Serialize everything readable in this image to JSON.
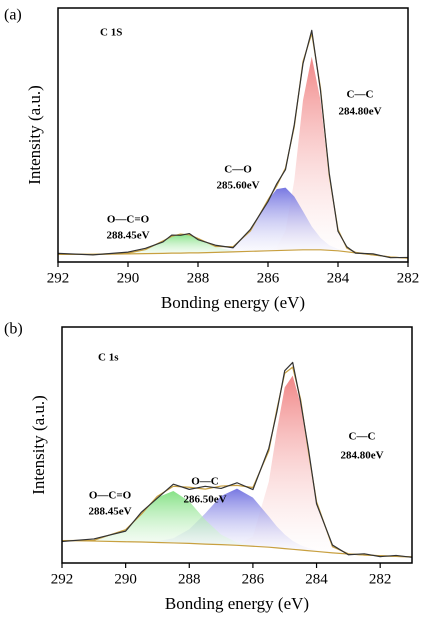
{
  "chart_data": [
    {
      "type": "xps",
      "label": "(a)",
      "x_label": "Bonding energy (eV)",
      "y_label": "Intensity (a.u.)",
      "annotations": [
        "C 1S",
        "C—C",
        "284.80eV",
        "C—O",
        "285.60eV",
        "O—C=O",
        "288.45eV"
      ],
      "xlim": [
        292,
        282
      ],
      "xticks": [
        292,
        290,
        288,
        286,
        284,
        282
      ],
      "ylim": [
        0,
        100
      ],
      "x": [
        292,
        291,
        290,
        289.5,
        289,
        288.75,
        288.5,
        288.25,
        288,
        287.5,
        287,
        286.5,
        286,
        285.75,
        285.5,
        285.25,
        285,
        284.75,
        284.5,
        284.25,
        284,
        283.75,
        283.5,
        283,
        282.5,
        282
      ],
      "baseline": {
        "color": "#c8a040",
        "values": [
          3,
          3,
          3.2,
          3.3,
          3.4,
          3.5,
          3.5,
          3.6,
          3.6,
          3.8,
          4,
          4.2,
          4.4,
          4.5,
          4.6,
          4.7,
          4.8,
          4.8,
          4.8,
          4.6,
          4.4,
          4,
          3.6,
          2.8,
          2,
          1.5
        ]
      },
      "series": [
        {
          "color": "#f08080",
          "fill": true,
          "values": [
            0,
            0,
            0,
            0,
            0,
            0,
            0,
            0,
            0,
            0,
            0,
            0,
            0.1,
            1.3,
            7.7,
            27.4,
            58.9,
            76,
            58.9,
            27.4,
            7.7,
            1.3,
            0.1,
            0,
            0,
            0
          ]
        },
        {
          "color": "#7070e0",
          "fill": true,
          "values": [
            0,
            0,
            0,
            0,
            0,
            0,
            0,
            0,
            0,
            0.2,
            1.6,
            8.1,
            20,
            24.2,
            24.7,
            21.1,
            15.2,
            9.2,
            4.7,
            2.0,
            0.7,
            0.2,
            0.1,
            0,
            0,
            0
          ]
        },
        {
          "color": "#80e080",
          "fill": true,
          "values": [
            0,
            0,
            0.3,
            1.6,
            4.9,
            6.6,
            7.5,
            7.1,
            5.7,
            2.1,
            0.4,
            0,
            0,
            0,
            0,
            0,
            0,
            0,
            0,
            0,
            0,
            0,
            0,
            0,
            0,
            0
          ]
        },
        {
          "color": "#c8a040",
          "values": [
            3,
            3,
            3.5,
            4.9,
            8.3,
            10.1,
            11.0,
            10.7,
            9.3,
            6.1,
            6.0,
            12.3,
            24.5,
            30.0,
            37.0,
            53.2,
            78.9,
            90.0,
            68.4,
            34.0,
            12.8,
            5.5,
            3.8,
            2.8,
            2,
            1.5
          ]
        },
        {
          "color": "#333333",
          "values": [
            3.4,
            2.8,
            3.9,
            5.4,
            7.9,
            10.6,
            10.5,
            11.2,
            8.8,
            6.6,
            5.6,
            12.9,
            23.8,
            30.8,
            36.4,
            54.0,
            78.1,
            91.2,
            67.5,
            34.9,
            12.1,
            6.0,
            3.5,
            3.2,
            1.7,
            1.8
          ]
        }
      ]
    },
    {
      "type": "xps",
      "label": "(b)",
      "x_label": "Bonding energy (eV)",
      "y_label": "Intensity (a.u.)",
      "annotations": [
        "C 1s",
        "C—C",
        "284.80eV",
        "O—C",
        "286.50eV",
        "O—C=O",
        "288.45eV"
      ],
      "xlim": [
        292,
        281
      ],
      "xticks": [
        292,
        290,
        288,
        286,
        284,
        282
      ],
      "ylim": [
        0,
        100
      ],
      "x": [
        292,
        291,
        290,
        289.5,
        289,
        288.5,
        288,
        287.5,
        287,
        286.5,
        286,
        285.5,
        285.25,
        285,
        284.75,
        284.5,
        284.25,
        284,
        283.5,
        283,
        282.5,
        282,
        281.5,
        281
      ],
      "baseline": {
        "color": "#c8a040",
        "values": [
          9.5,
          9.3,
          9,
          8.9,
          8.7,
          8.5,
          8.3,
          8,
          7.8,
          7.5,
          7.1,
          6.7,
          6.4,
          6.1,
          5.8,
          5.5,
          5.2,
          4.9,
          4.3,
          3.8,
          3.4,
          3.1,
          2.8,
          2.6
        ]
      },
      "series": [
        {
          "color": "#f08080",
          "fill": true,
          "values": [
            0,
            0,
            0,
            0,
            0,
            0,
            0,
            0,
            0,
            0.2,
            4.1,
            27.8,
            49.4,
            68.3,
            73.6,
            61.8,
            40.4,
            20.6,
            2.5,
            0.1,
            0,
            0,
            0,
            0
          ]
        },
        {
          "color": "#7070e0",
          "fill": true,
          "values": [
            0,
            0,
            0,
            0.1,
            0.5,
            2.0,
            6.0,
            13.0,
            20.6,
            24,
            20.6,
            13.0,
            9.1,
            6.0,
            3.6,
            2.0,
            1.1,
            0.5,
            0.1,
            0,
            0,
            0,
            0,
            0
          ]
        },
        {
          "color": "#80e080",
          "fill": true,
          "values": [
            0,
            0.3,
            5.1,
            11.8,
            19.1,
            22,
            17.8,
            10.3,
            4.2,
            1.2,
            0.2,
            0,
            0,
            0,
            0,
            0,
            0,
            0,
            0,
            0,
            0,
            0,
            0,
            0
          ]
        },
        {
          "color": "#c8a040",
          "values": [
            9.5,
            9.6,
            14.1,
            20.8,
            28.3,
            32.5,
            32.1,
            31.3,
            32.6,
            32.9,
            32.0,
            47.5,
            64.9,
            80.4,
            83.0,
            69.3,
            46.7,
            26.0,
            6.9,
            3.9,
            3.4,
            3.1,
            2.8,
            2.6
          ]
        },
        {
          "color": "#333333",
          "values": [
            9.1,
            10.2,
            13.5,
            21.6,
            27.5,
            33.4,
            31.2,
            32.5,
            31.6,
            34.0,
            31.1,
            48.6,
            63.8,
            81.5,
            85.0,
            68.2,
            47.9,
            25.1,
            7.6,
            3.5,
            3.9,
            2.7,
            3.2,
            2.4
          ]
        }
      ]
    }
  ]
}
